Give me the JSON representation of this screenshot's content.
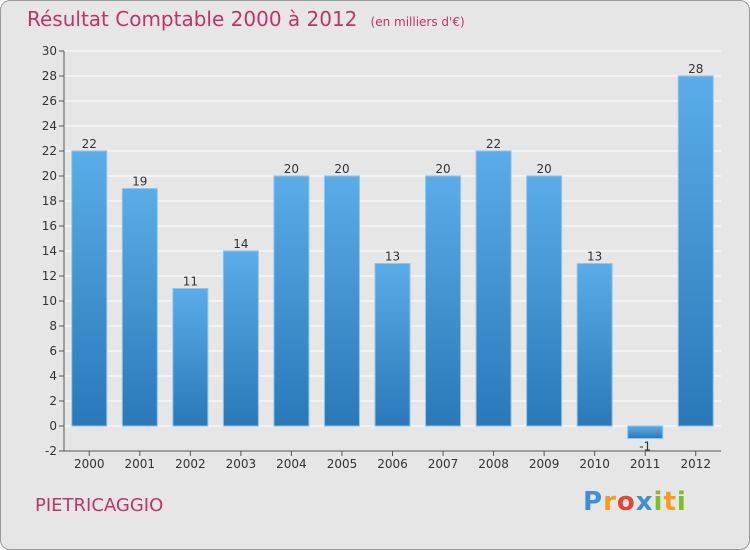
{
  "title": "Résultat Comptable 2000 à 2012",
  "unit": "(en milliers d'€)",
  "commune": "PIETRICAGGIO",
  "logo": {
    "text": "Proxiti",
    "letters": [
      {
        "char": "P",
        "color": "#3f8ed8"
      },
      {
        "char": "r",
        "color": "#f39c1e"
      },
      {
        "char": "o",
        "color": "#e8462e"
      },
      {
        "char": "x",
        "color": "#3f8ed8"
      },
      {
        "char": "i",
        "color": "#7cbf2a"
      },
      {
        "char": "t",
        "color": "#f39c1e"
      },
      {
        "char": "i",
        "color": "#7cbf2a"
      }
    ]
  },
  "colors": {
    "bar_light": "#5aade8",
    "bar_dark": "#2a78b8",
    "title": "#c0336a",
    "axis_text": "#333333"
  },
  "chart_data": {
    "type": "bar",
    "categories": [
      "2000",
      "2001",
      "2002",
      "2003",
      "2004",
      "2005",
      "2006",
      "2007",
      "2008",
      "2009",
      "2010",
      "2011",
      "2012"
    ],
    "values": [
      22,
      19,
      11,
      14,
      20,
      20,
      13,
      20,
      22,
      20,
      13,
      -1,
      28
    ],
    "labels": [
      "22",
      "19",
      "11",
      "14",
      "20",
      "20",
      "13",
      "20",
      "22",
      "20",
      "13",
      "-1",
      "28"
    ],
    "ylim": [
      -2,
      30
    ],
    "yticks": [
      -2,
      0,
      2,
      4,
      6,
      8,
      10,
      12,
      14,
      16,
      18,
      20,
      22,
      24,
      26,
      28,
      30
    ],
    "grid": true,
    "title": "Résultat Comptable 2000 à 2012",
    "xlabel": "",
    "ylabel": ""
  }
}
